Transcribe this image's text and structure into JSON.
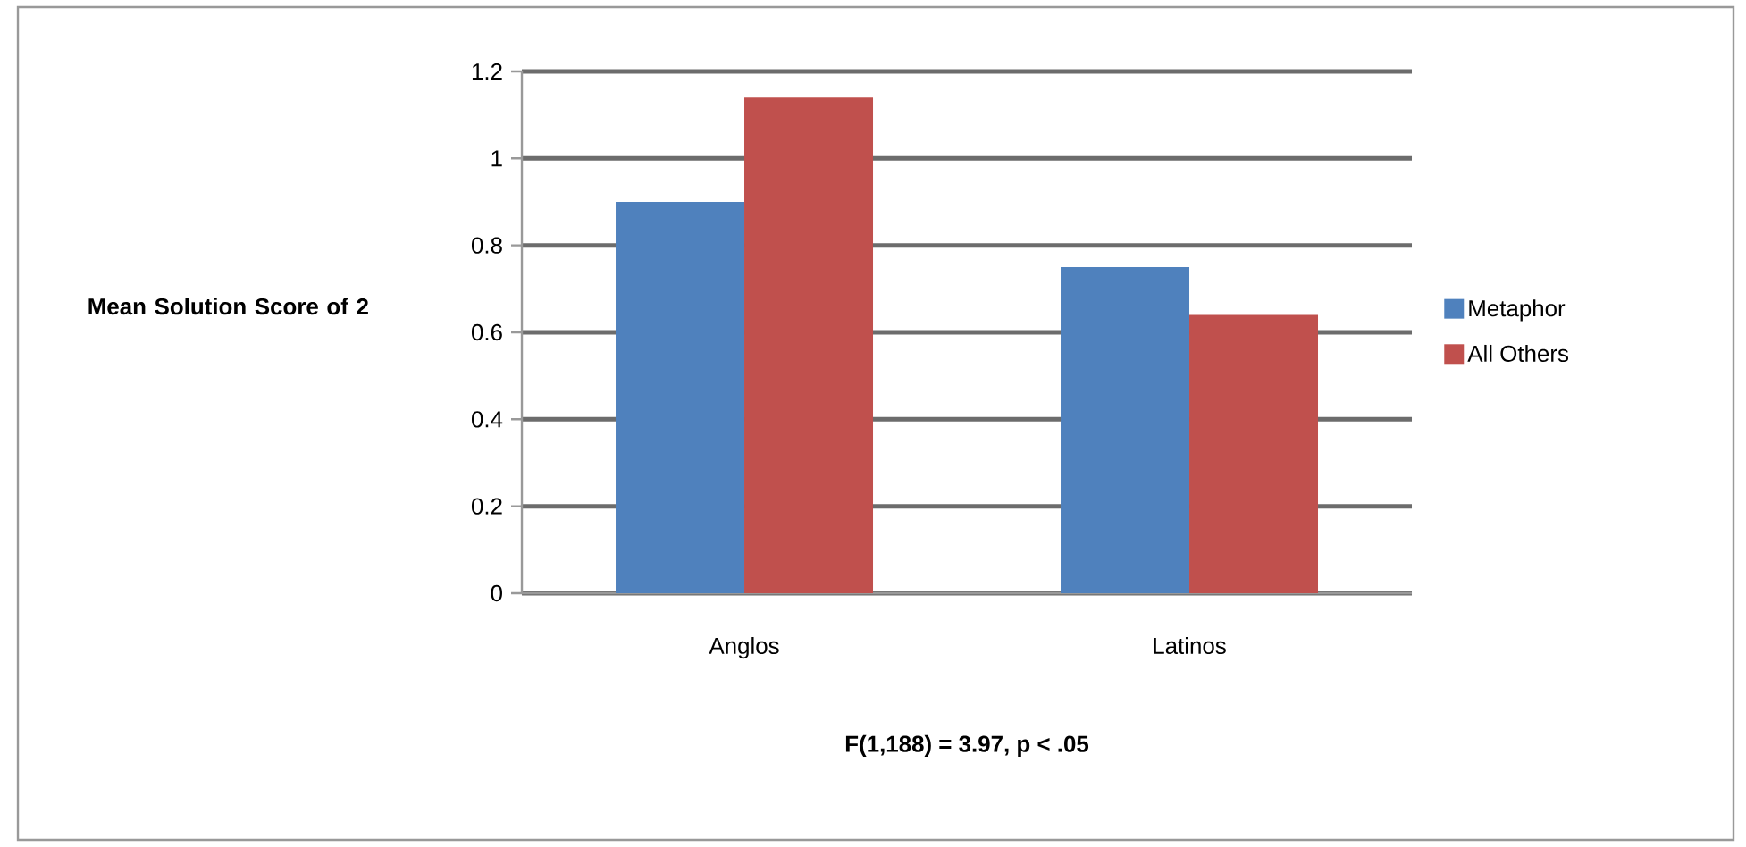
{
  "chart_data": {
    "type": "bar",
    "xlabel": "F(1,188) = 3.97, p < .05",
    "ylabel": "Mean Solution Score of 2",
    "categories": [
      "Anglos",
      "Latinos"
    ],
    "series": [
      {
        "name": "Metaphor",
        "color": "#4f81bd",
        "values": [
          0.9,
          0.75
        ]
      },
      {
        "name": "All Others",
        "color": "#c0504d",
        "values": [
          1.14,
          0.64
        ]
      }
    ],
    "ylim": [
      0,
      1.2
    ],
    "yticks": [
      0,
      0.2,
      0.4,
      0.6,
      0.8,
      1,
      1.2
    ],
    "grid": "y",
    "legend": "right"
  }
}
